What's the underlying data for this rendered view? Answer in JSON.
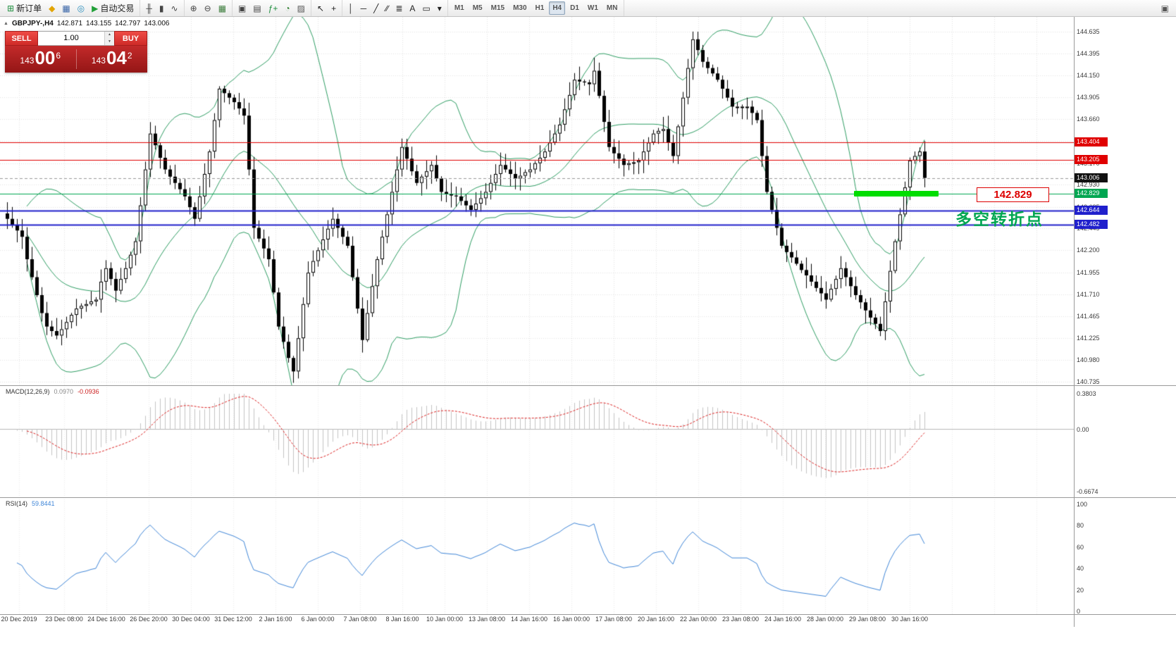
{
  "toolbar": {
    "groups": [
      {
        "name": "trade",
        "items": [
          {
            "name": "new-order-button",
            "glyph": "⊞",
            "color": "#1e8e3e",
            "label": "新订单"
          },
          {
            "name": "metaeditor-icon",
            "glyph": "◆",
            "color": "#e2a400"
          },
          {
            "name": "data-window-icon",
            "glyph": "▦",
            "color": "#3a66a8"
          },
          {
            "name": "web-icon",
            "glyph": "◎",
            "color": "#2a8fbd"
          },
          {
            "name": "autotrading-button",
            "glyph": "▶",
            "color": "#21a038",
            "label": "自动交易"
          }
        ]
      },
      {
        "name": "chart-type",
        "items": [
          {
            "name": "bar-chart-icon",
            "glyph": "╫",
            "color": "#444444"
          },
          {
            "name": "candlestick-icon",
            "glyph": "▮",
            "color": "#444444"
          },
          {
            "name": "line-chart-icon",
            "glyph": "∿",
            "color": "#444444"
          }
        ]
      },
      {
        "name": "zoom",
        "items": [
          {
            "name": "zoom-in-icon",
            "glyph": "⊕",
            "color": "#444444"
          },
          {
            "name": "zoom-out-icon",
            "glyph": "⊖",
            "color": "#444444"
          },
          {
            "name": "tile-windows-icon",
            "glyph": "▦",
            "color": "#3f7f3f"
          }
        ]
      },
      {
        "name": "windows",
        "items": [
          {
            "name": "arrange-windows-icon",
            "glyph": "▣",
            "color": "#444444"
          },
          {
            "name": "cascade-windows-icon",
            "glyph": "▤",
            "color": "#444444"
          },
          {
            "name": "indicators-icon",
            "glyph": "ƒ+",
            "color": "#1e8e3e"
          },
          {
            "name": "periods-icon",
            "glyph": "◔",
            "color": "#2a7d2a"
          },
          {
            "name": "templates-icon",
            "glyph": "▨",
            "color": "#555555"
          }
        ]
      },
      {
        "name": "cursor",
        "items": [
          {
            "name": "cursor-icon",
            "glyph": "↖",
            "color": "#222222"
          },
          {
            "name": "crosshair-icon",
            "glyph": "+",
            "color": "#222222"
          }
        ]
      },
      {
        "name": "draw",
        "items": [
          {
            "name": "vertical-line-icon",
            "glyph": "│",
            "color": "#222222"
          },
          {
            "name": "horizontal-line-icon",
            "glyph": "─",
            "color": "#222222"
          },
          {
            "name": "trendline-icon",
            "glyph": "╱",
            "color": "#222222"
          },
          {
            "name": "channel-icon",
            "glyph": "∕∕",
            "color": "#222222"
          },
          {
            "name": "fibonacci-icon",
            "glyph": "≣",
            "color": "#222222"
          },
          {
            "name": "text-icon",
            "glyph": "A",
            "color": "#222222"
          },
          {
            "name": "label-icon",
            "glyph": "▭",
            "color": "#222222"
          },
          {
            "name": "shapes-dropdown-icon",
            "glyph": "▾",
            "color": "#222222"
          }
        ]
      },
      {
        "name": "timeframes",
        "items": [
          {
            "name": "timeframe-m1-button",
            "label": "M1"
          },
          {
            "name": "timeframe-m5-button",
            "label": "M5"
          },
          {
            "name": "timeframe-m15-button",
            "label": "M15"
          },
          {
            "name": "timeframe-m30-button",
            "label": "M30"
          },
          {
            "name": "timeframe-h1-button",
            "label": "H1"
          },
          {
            "name": "timeframe-h4-button",
            "label": "H4",
            "active": true
          },
          {
            "name": "timeframe-d1-button",
            "label": "D1"
          },
          {
            "name": "timeframe-w1-button",
            "label": "W1"
          },
          {
            "name": "timeframe-mn-button",
            "label": "MN"
          }
        ]
      }
    ],
    "right_items": [
      {
        "name": "window-layout-icon",
        "glyph": "▣",
        "color": "#555555"
      }
    ]
  },
  "chart": {
    "header": {
      "collapse_glyph": "▲",
      "symbol": "GBPJPY-,H4",
      "open": "142.871",
      "high": "143.155",
      "low": "142.797",
      "close": "143.006"
    },
    "one_click": {
      "sell_label": "SELL",
      "buy_label": "BUY",
      "volume": "1.00",
      "up_glyph": "▲",
      "down_glyph": "▼",
      "sell_price": {
        "main": "143",
        "pips": "00",
        "frac": "6"
      },
      "buy_price": {
        "main": "143",
        "pips": "04",
        "frac": "2"
      }
    },
    "macd_label": {
      "title": "MACD(12,26,9)",
      "main": "0.0970",
      "signal": "-0.0936"
    },
    "rsi_label": {
      "title": "RSI(14)",
      "value": "59.8441"
    },
    "annotations": {
      "turning_point": "多空转折点",
      "price_box": "142.829",
      "highlight_color": "#00dd00"
    }
  },
  "chart_data": {
    "type": "candlestick",
    "symbol": "GBPJPY-",
    "timeframe": "H4",
    "ohlc": {
      "open": "142.871",
      "high": "143.155",
      "low": "142.797",
      "close": "143.006"
    },
    "y_range": [
      140.735,
      144.635
    ],
    "y_axis_labels": [
      "144.635",
      "144.395",
      "144.150",
      "143.905",
      "143.660",
      "143.415",
      "143.170",
      "142.930",
      "142.685",
      "142.445",
      "142.200",
      "141.955",
      "141.710",
      "141.465",
      "141.225",
      "140.980",
      "140.735"
    ],
    "x_labels": [
      "20 Dec 2019",
      "23 Dec 08:00",
      "24 Dec 16:00",
      "26 Dec 20:00",
      "30 Dec 04:00",
      "31 Dec 12:00",
      "2 Jan 16:00",
      "6 Jan 00:00",
      "7 Jan 08:00",
      "8 Jan 16:00",
      "10 Jan 00:00",
      "13 Jan 08:00",
      "14 Jan 16:00",
      "16 Jan 00:00",
      "17 Jan 08:00",
      "20 Jan 16:00",
      "22 Jan 00:00",
      "23 Jan 08:00",
      "24 Jan 16:00",
      "28 Jan 00:00",
      "29 Jan 08:00",
      "30 Jan 16:00"
    ],
    "closes": [
      142.55,
      142.48,
      142.42,
      142.35,
      142.1,
      141.9,
      141.7,
      141.5,
      141.35,
      141.3,
      141.25,
      141.32,
      141.4,
      141.48,
      141.55,
      141.58,
      141.6,
      141.63,
      141.65,
      141.85,
      142.0,
      141.88,
      141.75,
      141.88,
      142.0,
      142.15,
      142.3,
      142.7,
      143.1,
      143.5,
      143.37,
      143.23,
      143.1,
      143.02,
      142.95,
      142.88,
      142.8,
      142.68,
      142.55,
      142.8,
      143.05,
      143.3,
      143.65,
      144.0,
      143.95,
      143.9,
      143.85,
      143.78,
      143.7,
      143.1,
      142.45,
      142.33,
      142.22,
      142.1,
      141.73,
      141.35,
      141.18,
      141.0,
      140.85,
      141.22,
      141.6,
      141.95,
      142.08,
      142.2,
      142.32,
      142.44,
      142.55,
      142.45,
      142.35,
      142.25,
      141.9,
      141.55,
      141.2,
      141.5,
      141.8,
      142.1,
      142.35,
      142.6,
      142.85,
      143.1,
      143.35,
      143.22,
      143.08,
      142.95,
      143.02,
      143.08,
      143.15,
      143.0,
      142.85,
      142.83,
      142.81,
      142.8,
      142.75,
      142.7,
      142.65,
      142.72,
      142.78,
      142.85,
      142.95,
      143.05,
      143.15,
      143.1,
      143.05,
      143.0,
      143.03,
      143.07,
      143.1,
      143.17,
      143.23,
      143.3,
      143.4,
      143.5,
      143.6,
      143.77,
      143.93,
      144.1,
      144.08,
      144.07,
      144.05,
      144.2,
      143.92,
      143.63,
      143.35,
      143.28,
      143.22,
      143.15,
      143.17,
      143.18,
      143.2,
      143.3,
      143.4,
      143.5,
      143.53,
      143.55,
      143.4,
      143.25,
      143.58,
      143.9,
      144.23,
      144.55,
      144.43,
      144.3,
      144.23,
      144.17,
      144.1,
      144.0,
      143.9,
      143.8,
      143.8,
      143.8,
      143.8,
      143.73,
      143.65,
      143.25,
      142.85,
      142.65,
      142.45,
      142.25,
      142.18,
      142.12,
      142.05,
      141.98,
      141.92,
      141.85,
      141.78,
      141.72,
      141.65,
      141.77,
      141.88,
      142.0,
      141.9,
      141.8,
      141.7,
      141.62,
      141.53,
      141.45,
      141.38,
      141.3,
      141.63,
      141.97,
      142.3,
      142.6,
      142.9,
      143.2,
      143.25,
      143.3,
      143.006
    ],
    "levels": [
      {
        "price": 143.404,
        "color": "#e00000",
        "width": 1,
        "tag": "143.404"
      },
      {
        "price": 143.205,
        "color": "#e00000",
        "width": 1,
        "tag": "143.205"
      },
      {
        "price": 142.829,
        "color": "#00a651",
        "width": 1,
        "tag": "142.829"
      },
      {
        "price": 142.644,
        "color": "#2020cc",
        "width": 2,
        "tag": "142.644"
      },
      {
        "price": 142.482,
        "color": "#2020cc",
        "width": 2,
        "tag": "142.482"
      }
    ],
    "last_price": {
      "value": "143.006",
      "price": 143.006,
      "tag_color": "#111111"
    },
    "bollinger": {
      "period": 20,
      "deviation": 2,
      "color": "#2f9e64"
    },
    "indicators": [
      {
        "name": "MACD",
        "params": "(12,26,9)",
        "value_main": "0.0970",
        "value_signal": "-0.0936",
        "scale": [
          "0.3803",
          "0.00",
          "-0.6674"
        ],
        "histogram_color": "#c4c4c4",
        "signal_color": "#dd2222"
      },
      {
        "name": "RSI",
        "params": "(14)",
        "value": "59.8441",
        "scale": [
          "100",
          "80",
          "60",
          "40",
          "20",
          "0"
        ],
        "line_color": "#3f86d8"
      }
    ]
  }
}
